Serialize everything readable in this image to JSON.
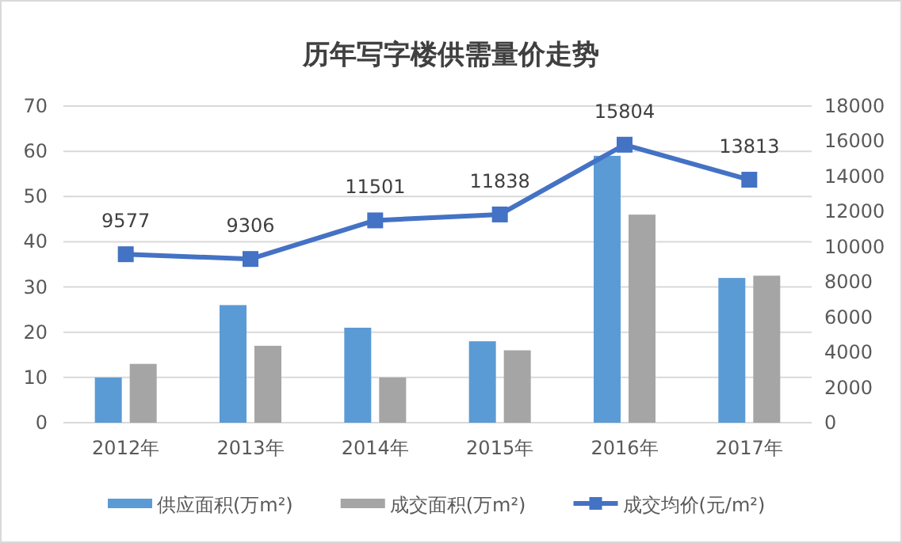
{
  "chart_data": {
    "type": "bar",
    "title": "历年写字楼供需量价走势",
    "categories": [
      "2012年",
      "2013年",
      "2014年",
      "2015年",
      "2016年",
      "2017年"
    ],
    "series": [
      {
        "name": "供应面积(万m²)",
        "color": "#5b9bd5",
        "values": [
          10,
          26,
          21,
          18,
          59,
          32
        ]
      },
      {
        "name": "成交面积(万m²)",
        "color": "#a5a5a5",
        "values": [
          13,
          17,
          10,
          16,
          46,
          32.5
        ]
      },
      {
        "name": "成交均价(元/m²)",
        "type": "line",
        "axis": "y2",
        "color": "#4472c4",
        "marker": "square",
        "values": [
          9577,
          9306,
          11501,
          11838,
          15804,
          13813
        ],
        "value_labels": [
          "9577",
          "9306",
          "11501",
          "11838",
          "15804",
          "13813"
        ]
      }
    ],
    "ylim": [
      0,
      70
    ],
    "yticks": [
      0,
      10,
      20,
      30,
      40,
      50,
      60,
      70
    ],
    "y2lim": [
      0,
      18000
    ],
    "y2ticks": [
      0,
      2000,
      4000,
      6000,
      8000,
      10000,
      12000,
      14000,
      16000,
      18000
    ],
    "grid": "y",
    "legend": "bottom"
  }
}
